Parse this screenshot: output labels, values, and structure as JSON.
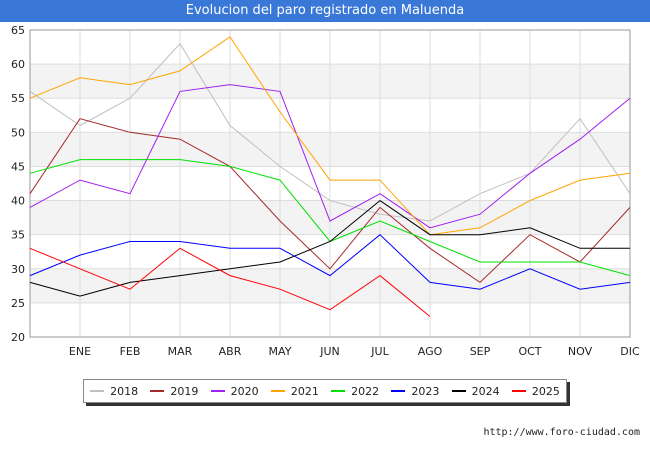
{
  "title": "Evolucion del paro registrado en Maluenda",
  "source": "http://www.foro-ciudad.com",
  "chart_data": {
    "type": "line",
    "title": "Evolucion del paro registrado en Maluenda",
    "categories": [
      "",
      "ENE",
      "FEB",
      "MAR",
      "ABR",
      "MAY",
      "JUN",
      "JUL",
      "AGO",
      "SEP",
      "OCT",
      "NOV",
      "DIC"
    ],
    "ylim": [
      20,
      65
    ],
    "yticks": [
      20,
      25,
      30,
      35,
      40,
      45,
      50,
      55,
      60,
      65
    ],
    "grid": true,
    "legend_position": "bottom",
    "series": [
      {
        "name": "2018",
        "color": "#c0c0c0",
        "values": [
          56,
          51,
          55,
          63,
          51,
          45,
          40,
          38,
          37,
          41,
          44,
          52,
          41
        ]
      },
      {
        "name": "2019",
        "color": "#a52a2a",
        "values": [
          41,
          52,
          50,
          49,
          45,
          37,
          30,
          39,
          33,
          28,
          35,
          31,
          39
        ]
      },
      {
        "name": "2020",
        "color": "#a020f0",
        "values": [
          39,
          43,
          41,
          56,
          57,
          56,
          37,
          41,
          36,
          38,
          44,
          49,
          55
        ]
      },
      {
        "name": "2021",
        "color": "#ffa500",
        "values": [
          55,
          58,
          57,
          59,
          64,
          53,
          43,
          43,
          35,
          36,
          40,
          43,
          44
        ]
      },
      {
        "name": "2022",
        "color": "#00e000",
        "values": [
          44,
          46,
          46,
          46,
          45,
          43,
          34,
          37,
          34,
          31,
          31,
          31,
          29
        ]
      },
      {
        "name": "2023",
        "color": "#0000ff",
        "values": [
          29,
          32,
          34,
          34,
          33,
          33,
          29,
          35,
          28,
          27,
          30,
          27,
          28
        ]
      },
      {
        "name": "2024",
        "color": "#000000",
        "values": [
          28,
          26,
          28,
          29,
          30,
          31,
          34,
          40,
          35,
          35,
          36,
          33,
          33
        ]
      },
      {
        "name": "2025",
        "color": "#ff0000",
        "values": [
          33,
          30,
          27,
          33,
          29,
          27,
          24,
          29,
          23,
          null,
          null,
          null,
          null
        ]
      }
    ]
  }
}
